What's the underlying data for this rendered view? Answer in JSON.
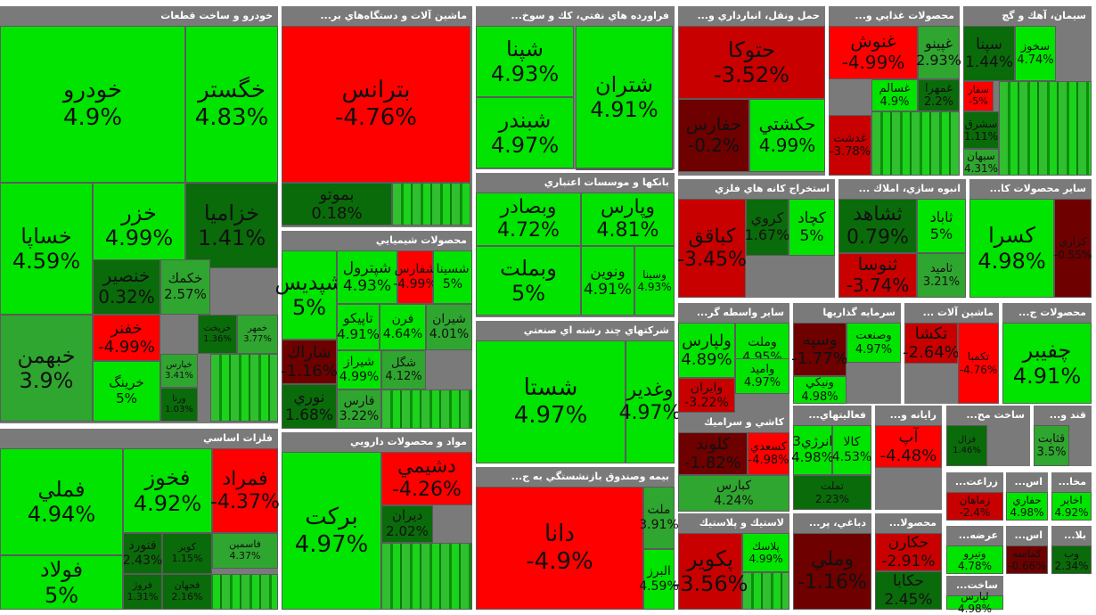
{
  "chart_data": {
    "type": "treemap",
    "title": "",
    "color_scale": {
      "up_bright": "#00e400",
      "up_mid": "#2fa62f",
      "up_dark": "#0a6b0a",
      "down_bright": "#ff0000",
      "down_mid": "#c80000",
      "down_dark": "#6e0000"
    },
    "sectors": [
      {
        "name": "خودرو و ساخت قطعات",
        "stocks": [
          {
            "symbol": "خودرو",
            "change": "4.9%"
          },
          {
            "symbol": "خگستر",
            "change": "4.83%"
          },
          {
            "symbol": "خساپا",
            "change": "4.59%"
          },
          {
            "symbol": "خزر",
            "change": "4.99%"
          },
          {
            "symbol": "خزاميا",
            "change": "1.41%"
          },
          {
            "symbol": "خنصير",
            "change": "0.32%"
          },
          {
            "symbol": "خكمك",
            "change": "2.57%"
          },
          {
            "symbol": "خبهمن",
            "change": "3.9%"
          },
          {
            "symbol": "خفنر",
            "change": "-4.99%"
          },
          {
            "symbol": "خرينگ",
            "change": "5%"
          },
          {
            "symbol": "خمهر",
            "change": "3.77%"
          },
          {
            "symbol": "خريخت",
            "change": "1.36%"
          },
          {
            "symbol": "خپارس",
            "change": "3.41%"
          },
          {
            "symbol": "ورنا",
            "change": "1.03%"
          }
        ]
      },
      {
        "name": "ماشين آلات و دستگاه‌هاي بر...",
        "stocks": [
          {
            "symbol": "بترانس",
            "change": "-4.76%"
          },
          {
            "symbol": "بموتو",
            "change": "0.18%"
          }
        ]
      },
      {
        "name": "فراورده هاي نفتي، كك و سوخ...",
        "stocks": [
          {
            "symbol": "شپنا",
            "change": "4.93%"
          },
          {
            "symbol": "شتران",
            "change": "4.91%"
          },
          {
            "symbol": "شبندر",
            "change": "4.97%"
          }
        ]
      },
      {
        "name": "حمل ونقل، انبارداري و...",
        "stocks": [
          {
            "symbol": "حتوكا",
            "change": "-3.52%"
          },
          {
            "symbol": "حفارس",
            "change": "-0.2%"
          },
          {
            "symbol": "حكشتي",
            "change": "4.99%"
          }
        ]
      },
      {
        "name": "محصولات غذايي و...",
        "stocks": [
          {
            "symbol": "غنوش",
            "change": "-4.99%"
          },
          {
            "symbol": "غپينو",
            "change": "2.93%"
          },
          {
            "symbol": "غمهرا",
            "change": "2.2%"
          },
          {
            "symbol": "غسالم",
            "change": "4.9%"
          },
          {
            "symbol": "غدشت",
            "change": "-3.78%"
          }
        ]
      },
      {
        "name": "سيمان، آهك و گچ",
        "stocks": [
          {
            "symbol": "سپنا",
            "change": "1.44%"
          },
          {
            "symbol": "سخوز",
            "change": "4.74%"
          },
          {
            "symbol": "سفار",
            "change": "-5%"
          },
          {
            "symbol": "سشرق",
            "change": "1.11%"
          },
          {
            "symbol": "سبهان",
            "change": "4.31%"
          }
        ]
      },
      {
        "name": "بانكها و موسسات اعتباري",
        "stocks": [
          {
            "symbol": "وبصادر",
            "change": "4.72%"
          },
          {
            "symbol": "وپارس",
            "change": "4.81%"
          },
          {
            "symbol": "وبملت",
            "change": "5%"
          },
          {
            "symbol": "ونوين",
            "change": "4.91%"
          },
          {
            "symbol": "وسينا",
            "change": "4.93%"
          }
        ]
      },
      {
        "name": "استخراج كانه هاي فلزي",
        "stocks": [
          {
            "symbol": "كباقق",
            "change": "-3.45%"
          },
          {
            "symbol": "كروي",
            "change": "1.67%"
          },
          {
            "symbol": "كچاد",
            "change": "5%"
          }
        ]
      },
      {
        "name": "انبوه سازي، املاك ...",
        "stocks": [
          {
            "symbol": "ثشاهد",
            "change": "0.79%"
          },
          {
            "symbol": "ثاباد",
            "change": "5%"
          },
          {
            "symbol": "ثنوسا",
            "change": "-3.74%"
          },
          {
            "symbol": "ثامید",
            "change": "3.21%"
          }
        ]
      },
      {
        "name": "ساير محصولات كا...",
        "stocks": [
          {
            "symbol": "كسرا",
            "change": "4.98%"
          },
          {
            "symbol": "كرازي",
            "change": "-0.55%"
          }
        ]
      },
      {
        "name": "محصولات شيميايي",
        "stocks": [
          {
            "symbol": "شپديس",
            "change": "5%"
          },
          {
            "symbol": "شپترول",
            "change": "4.93%"
          },
          {
            "symbol": "شفارس",
            "change": "-4.99%"
          },
          {
            "symbol": "شسينا",
            "change": "5%"
          },
          {
            "symbol": "شاراك",
            "change": "-1.16%"
          },
          {
            "symbol": "تاپيكو",
            "change": "4.91%"
          },
          {
            "symbol": "فرن",
            "change": "4.64%"
          },
          {
            "symbol": "شيران",
            "change": "4.01%"
          },
          {
            "symbol": "شيراز",
            "change": "4.99%"
          },
          {
            "symbol": "شگل",
            "change": "4.12%"
          },
          {
            "symbol": "نوري",
            "change": "1.68%"
          },
          {
            "symbol": "فارس",
            "change": "3.22%"
          }
        ]
      },
      {
        "name": "شركتهاي چند رشته اي صنعتي",
        "stocks": [
          {
            "symbol": "شستا",
            "change": "4.97%"
          },
          {
            "symbol": "وغدير",
            "change": "4.97%"
          }
        ]
      },
      {
        "name": "ساير واسطه گر...",
        "stocks": [
          {
            "symbol": "ولپارس",
            "change": "4.89%"
          },
          {
            "symbol": "وملت",
            "change": "4.95%"
          },
          {
            "symbol": "واميد",
            "change": "4.97%"
          },
          {
            "symbol": "وايران",
            "change": "-3.22%"
          }
        ]
      },
      {
        "name": "سرمايه گذاريها",
        "stocks": [
          {
            "symbol": "وسپه",
            "change": "-1.77%"
          },
          {
            "symbol": "وصنعت",
            "change": "4.97%"
          },
          {
            "symbol": "ونيكي",
            "change": "4.98%"
          }
        ]
      },
      {
        "name": "ماشين آلات ...",
        "stocks": [
          {
            "symbol": "تكشا",
            "change": "-2.64%"
          },
          {
            "symbol": "تكمبا",
            "change": "-4.76%"
          }
        ]
      },
      {
        "name": "محصولات ج...",
        "stocks": [
          {
            "symbol": "چفيبر",
            "change": "4.91%"
          }
        ]
      },
      {
        "name": "كاشي و سراميك",
        "stocks": [
          {
            "symbol": "كلوند",
            "change": "-1.82%"
          },
          {
            "symbol": "كسعدي",
            "change": "-4.98%"
          },
          {
            "symbol": "كبارس",
            "change": "4.24%"
          }
        ]
      },
      {
        "name": "فعاليتهاي...",
        "stocks": [
          {
            "symbol": "انرژي3",
            "change": "4.98%"
          },
          {
            "symbol": "كالا",
            "change": "4.53%"
          },
          {
            "symbol": "تملت",
            "change": "2.23%"
          }
        ]
      },
      {
        "name": "رايانه و...",
        "stocks": [
          {
            "symbol": "آپ",
            "change": "-4.48%"
          }
        ]
      },
      {
        "name": "ساخت مح...",
        "stocks": [
          {
            "symbol": "فزال",
            "change": "1.46%"
          }
        ]
      },
      {
        "name": "قند و...",
        "stocks": [
          {
            "symbol": "قثابت",
            "change": "3.5%"
          }
        ]
      },
      {
        "name": "فلزات اساسي",
        "stocks": [
          {
            "symbol": "فملي",
            "change": "4.94%"
          },
          {
            "symbol": "فخوز",
            "change": "4.92%"
          },
          {
            "symbol": "فمراد",
            "change": "-4.37%"
          },
          {
            "symbol": "فولاد",
            "change": "5%"
          },
          {
            "symbol": "فنورد",
            "change": "2.43%"
          },
          {
            "symbol": "فروژ",
            "change": "1.31%"
          },
          {
            "symbol": "كوير",
            "change": "1.15%"
          },
          {
            "symbol": "فجهان",
            "change": "2.16%"
          },
          {
            "symbol": "فاسمين",
            "change": "4.37%"
          }
        ]
      },
      {
        "name": "مواد و محصولات دارويي",
        "stocks": [
          {
            "symbol": "بركت",
            "change": "4.97%"
          },
          {
            "symbol": "دشيمي",
            "change": "-4.26%"
          },
          {
            "symbol": "ديران",
            "change": "2.02%"
          }
        ]
      },
      {
        "name": "بيمه وصندوق بازنشستگي به ج...",
        "stocks": [
          {
            "symbol": "دانا",
            "change": "-4.9%"
          },
          {
            "symbol": "ملت",
            "change": "3.91%"
          },
          {
            "symbol": "البرز",
            "change": "4.59%"
          }
        ]
      },
      {
        "name": "لاستيك و پلاستيك",
        "stocks": [
          {
            "symbol": "پكوير",
            "change": "-3.56%"
          },
          {
            "symbol": "پلاسك",
            "change": "4.99%"
          }
        ]
      },
      {
        "name": "دباغي، پر...",
        "stocks": [
          {
            "symbol": "وملي",
            "change": "-1.16%"
          }
        ]
      },
      {
        "name": "محصولا...",
        "stocks": [
          {
            "symbol": "حكارن",
            "change": "-2.91%"
          },
          {
            "symbol": "حكابا",
            "change": "2.45%"
          }
        ]
      },
      {
        "name": "زراعت...",
        "stocks": [
          {
            "symbol": "زماهان",
            "change": "-2.4%"
          }
        ]
      },
      {
        "name": "اس...",
        "stocks": [
          {
            "symbol": "حفاري",
            "change": "4.98%"
          }
        ]
      },
      {
        "name": "مخا...",
        "stocks": [
          {
            "symbol": "اخابر",
            "change": "4.92%"
          }
        ]
      },
      {
        "name": "عرضه...",
        "stocks": [
          {
            "symbol": "وتيرو",
            "change": "4.78%"
          }
        ]
      },
      {
        "name": "اس...",
        "stocks": [
          {
            "symbol": "كماسه",
            "change": "-0.66%"
          }
        ]
      },
      {
        "name": "بلا...",
        "stocks": [
          {
            "symbol": "وب",
            "change": "2.34%"
          }
        ]
      },
      {
        "name": "ساخت...",
        "stocks": [
          {
            "symbol": "لپارس",
            "change": "4.98%"
          }
        ]
      }
    ]
  }
}
